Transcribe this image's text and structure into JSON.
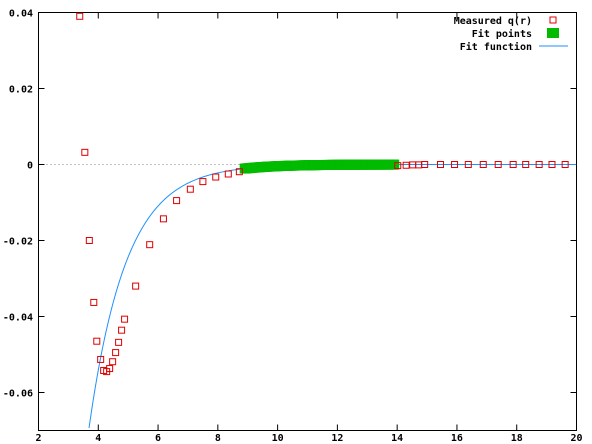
{
  "chart_data": {
    "type": "scatter",
    "title": "",
    "xlabel": "",
    "ylabel": "",
    "xlim": [
      2,
      20
    ],
    "ylim": [
      -0.07,
      0.04
    ],
    "x_ticks": [
      2,
      4,
      6,
      8,
      10,
      12,
      14,
      16,
      18,
      20
    ],
    "x_tick_labels": [
      "2",
      "4",
      "6",
      "8",
      "10",
      "12",
      "14",
      "16",
      "18",
      "20"
    ],
    "y_ticks": [
      0.04,
      0.02,
      0,
      -0.02,
      -0.04,
      -0.06
    ],
    "y_tick_labels": [
      "0.04",
      "0.02",
      "0",
      "-0.02",
      "-0.04",
      "-0.06"
    ],
    "zero_line": true,
    "grid": false,
    "legend_position": "top-right",
    "series": [
      {
        "name": "Measured q(r)",
        "style": "open-square",
        "color": "#e00000",
        "points": [
          [
            3.38,
            0.039
          ],
          [
            3.55,
            0.0032
          ],
          [
            3.7,
            -0.02
          ],
          [
            3.85,
            -0.0363
          ],
          [
            3.95,
            -0.0465
          ],
          [
            4.08,
            -0.0513
          ],
          [
            4.18,
            -0.0542
          ],
          [
            4.28,
            -0.0545
          ],
          [
            4.38,
            -0.0537
          ],
          [
            4.48,
            -0.0519
          ],
          [
            4.58,
            -0.0495
          ],
          [
            4.68,
            -0.0468
          ],
          [
            4.78,
            -0.0436
          ],
          [
            4.88,
            -0.0407
          ],
          [
            5.25,
            -0.032
          ],
          [
            5.72,
            -0.0211
          ],
          [
            6.18,
            -0.0143
          ],
          [
            6.62,
            -0.0095
          ],
          [
            7.08,
            -0.0065
          ],
          [
            7.5,
            -0.0045
          ],
          [
            7.93,
            -0.0033
          ],
          [
            8.35,
            -0.0025
          ],
          [
            8.72,
            -0.0019
          ],
          [
            14.02,
            -0.0003
          ],
          [
            14.3,
            -0.0002
          ],
          [
            14.52,
            -0.0001
          ],
          [
            14.72,
            -0.0001
          ],
          [
            14.92,
            0
          ],
          [
            15.45,
            0
          ],
          [
            15.92,
            0
          ],
          [
            16.38,
            0
          ],
          [
            16.88,
            0
          ],
          [
            17.38,
            0
          ],
          [
            17.88,
            0
          ],
          [
            18.3,
            0
          ],
          [
            18.75,
            0
          ],
          [
            19.18,
            0
          ],
          [
            19.62,
            0
          ]
        ]
      },
      {
        "name": "Fit points",
        "style": "filled-square",
        "color": "#00bb00",
        "x_range": [
          8.9,
          13.9
        ],
        "x_step": 0.05,
        "note_function": "same as fit function"
      },
      {
        "name": "Fit function",
        "style": "line",
        "color": "#1e90ff",
        "function": "-0.4 * exp(-(r-1.5)/1.25)",
        "x_range": [
          3.55,
          20
        ]
      }
    ]
  }
}
